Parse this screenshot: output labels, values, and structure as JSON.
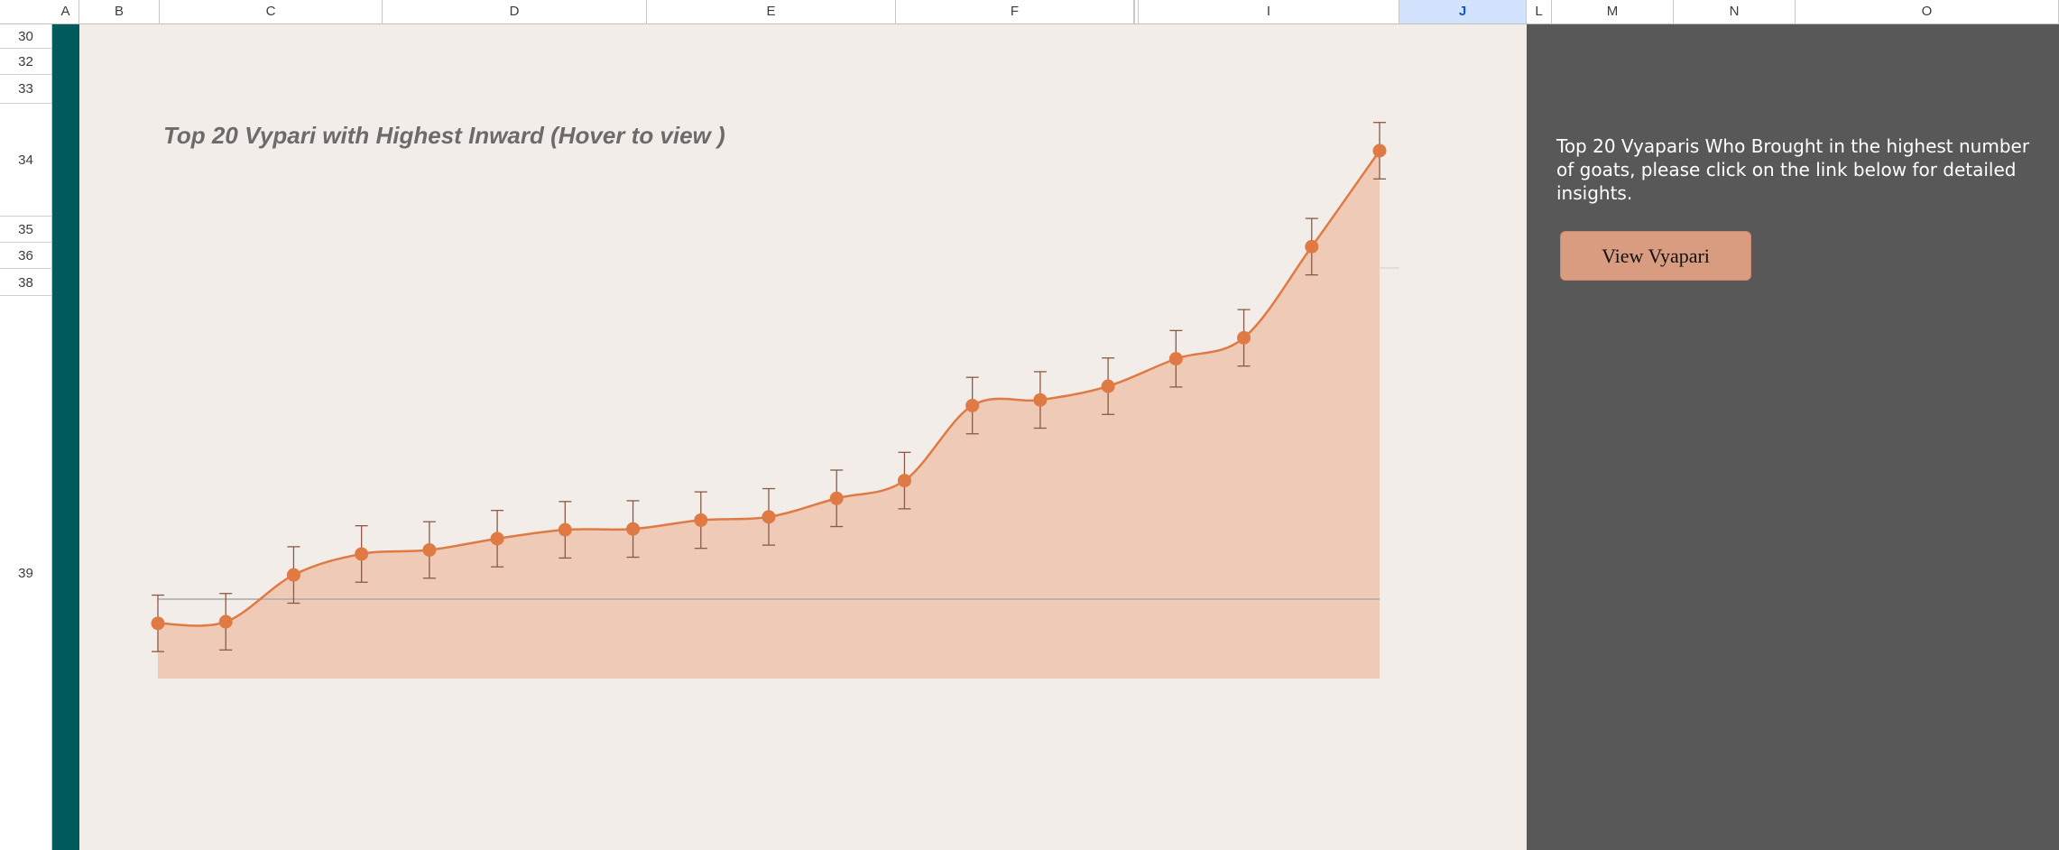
{
  "columns": [
    {
      "label": "A"
    },
    {
      "label": "B"
    },
    {
      "label": "C"
    },
    {
      "label": "D"
    },
    {
      "label": "E"
    },
    {
      "label": "F"
    },
    {
      "label": "I"
    },
    {
      "label": "J"
    },
    {
      "label": "L"
    },
    {
      "label": "M"
    },
    {
      "label": "N"
    },
    {
      "label": "O"
    }
  ],
  "selected_column": "J",
  "rows": [
    {
      "label": "30"
    },
    {
      "label": "32"
    },
    {
      "label": "33"
    },
    {
      "label": "34"
    },
    {
      "label": "35"
    },
    {
      "label": "36"
    },
    {
      "label": "38"
    },
    {
      "label": "39"
    }
  ],
  "chart": {
    "title": "Top 20 Vypari with Highest Inward (Hover to view )"
  },
  "chart_data": {
    "type": "area",
    "title": "Top 20 Vypari with Highest Inward (Hover to view )",
    "xlabel": "",
    "ylabel": "",
    "series": [
      {
        "values": [
          -3,
          -2.8,
          3,
          5.6,
          6.1,
          7.5,
          8.6,
          8.7,
          9.8,
          10.2,
          12.5,
          14.7,
          24,
          24.7,
          26.4,
          29.8,
          32.4,
          43.7,
          55.6
        ],
        "error": 3.5
      }
    ],
    "reference_line": 0,
    "colors": {
      "line": "#e07a45",
      "fill": "#efcab6",
      "marker": "#e07a45",
      "error_bar": "#8a5a44",
      "reference": "#a8a8a8"
    }
  },
  "info_panel": {
    "text": "Top 20 Vyaparis Who Brought in the highest number of goats, please click on the link below for detailed insights.",
    "button_label": "View Vyapari"
  },
  "colors": {
    "teal_strip": "#005b5c",
    "chart_bg": "#f2ede8",
    "panel_bg": "#585858",
    "button_bg": "#d99c80"
  }
}
